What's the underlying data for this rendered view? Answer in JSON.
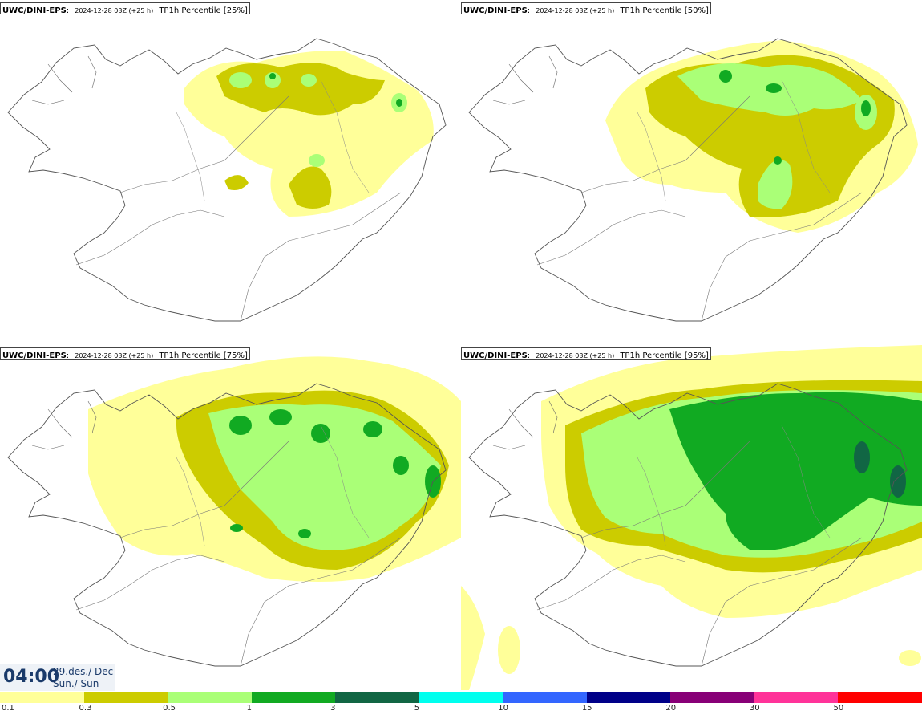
{
  "panels": [
    {
      "model": "UWC/DINI-EPS",
      "colon": ":",
      "run": "2024-12-28 03Z (+25 h)",
      "field": "TP1h Percentile [25%]"
    },
    {
      "model": "UWC/DINI-EPS",
      "colon": ":",
      "run": "2024-12-28 03Z (+25 h)",
      "field": "TP1h Percentile [50%]"
    },
    {
      "model": "UWC/DINI-EPS",
      "colon": ":",
      "run": "2024-12-28 03Z (+25 h)",
      "field": "TP1h Percentile [75%]"
    },
    {
      "model": "UWC/DINI-EPS",
      "colon": ":",
      "run": "2024-12-28 03Z (+25 h)",
      "field": "TP1h Percentile [95%]"
    }
  ],
  "valid_time": {
    "hour": "04:00",
    "date": "29.des./ Dec",
    "day": "Sun./ Sun"
  },
  "legend": {
    "colors": [
      "#ffff99",
      "#cccc00",
      "#aaff77",
      "#11aa22",
      "#116644",
      "#00ffee",
      "#3366ff",
      "#000088",
      "#880077",
      "#ff3399",
      "#ff0000"
    ],
    "ticks": [
      "0.1",
      "0.3",
      "0.5",
      "1",
      "3",
      "5",
      "10",
      "15",
      "20",
      "30",
      "50"
    ]
  }
}
